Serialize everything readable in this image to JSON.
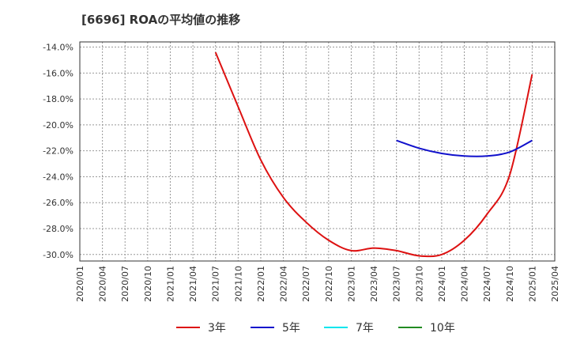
{
  "chart_data": {
    "type": "line",
    "title": "[6696]  ROAの平均値の推移",
    "xlabel": "",
    "ylabel": "",
    "x_ticks": [
      "2020/01",
      "2020/04",
      "2020/07",
      "2020/10",
      "2021/01",
      "2021/04",
      "2021/07",
      "2021/10",
      "2022/01",
      "2022/04",
      "2022/07",
      "2022/10",
      "2023/01",
      "2023/04",
      "2023/07",
      "2023/10",
      "2024/01",
      "2024/04",
      "2024/07",
      "2024/10",
      "2025/01",
      "2025/04"
    ],
    "y_ticks": [
      -14,
      -16,
      -18,
      -20,
      -22,
      -24,
      -26,
      -28,
      -30
    ],
    "y_tick_labels": [
      "-14.0%",
      "-16.0%",
      "-18.0%",
      "-20.0%",
      "-22.0%",
      "-24.0%",
      "-26.0%",
      "-28.0%",
      "-30.0%"
    ],
    "ylim": [
      -30.5,
      -13.6
    ],
    "grid": true,
    "legend_position": "bottom",
    "series": [
      {
        "name": "3年",
        "color": "#dd1111",
        "points": [
          [
            "2021/07",
            -14.4
          ],
          [
            "2021/10",
            -18.6
          ],
          [
            "2022/01",
            -22.7
          ],
          [
            "2022/04",
            -25.6
          ],
          [
            "2022/07",
            -27.5
          ],
          [
            "2022/10",
            -28.9
          ],
          [
            "2023/01",
            -29.7
          ],
          [
            "2023/04",
            -29.5
          ],
          [
            "2023/07",
            -29.7
          ],
          [
            "2023/10",
            -30.1
          ],
          [
            "2024/01",
            -30.0
          ],
          [
            "2024/04",
            -28.9
          ],
          [
            "2024/07",
            -26.9
          ],
          [
            "2024/10",
            -23.9
          ],
          [
            "2025/01",
            -16.1
          ]
        ]
      },
      {
        "name": "5年",
        "color": "#1111cc",
        "points": [
          [
            "2023/07",
            -21.2
          ],
          [
            "2023/10",
            -21.8
          ],
          [
            "2024/01",
            -22.2
          ],
          [
            "2024/04",
            -22.4
          ],
          [
            "2024/07",
            -22.4
          ],
          [
            "2024/10",
            -22.1
          ],
          [
            "2025/01",
            -21.2
          ]
        ]
      },
      {
        "name": "7年",
        "color": "#00e5ee",
        "points": []
      },
      {
        "name": "10年",
        "color": "#228b22",
        "points": []
      }
    ]
  }
}
